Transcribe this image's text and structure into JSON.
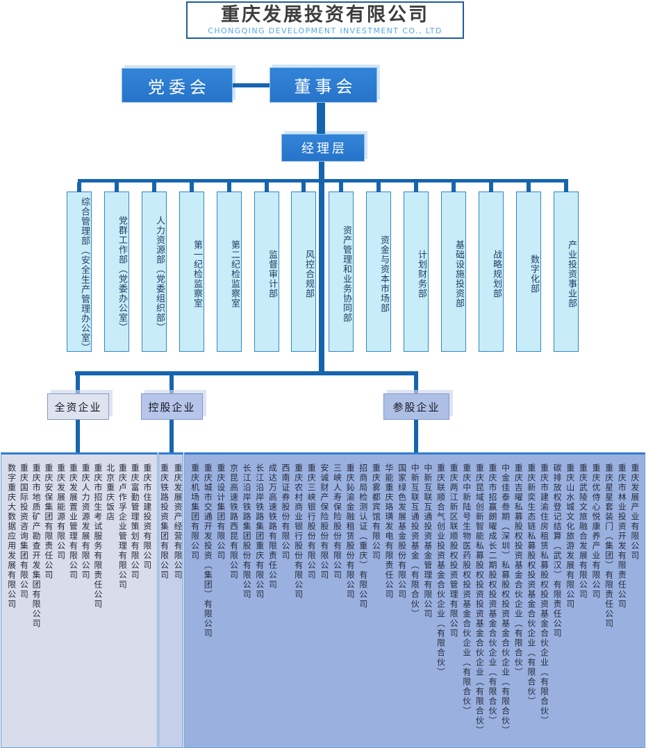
{
  "header": {
    "title_cn": "重庆发展投资有限公司",
    "title_en": "CHONGQING DEVELOPMENT INVESTMENT CO., LTD"
  },
  "governance": {
    "party_committee": "党委会",
    "board": "董事会",
    "management": "经理层"
  },
  "departments": [
    "综合管理部（安全生产管理办公室）",
    "党群工作部（党委办公室）",
    "人力资源部（党委组织部）",
    "第一纪检监察室",
    "第二纪检监察室",
    "监督审计部",
    "风控合规部",
    "资产管理和业务协同部",
    "资金与资本市场部",
    "计划财务部",
    "基础设施投资部",
    "战略规划部",
    "数字化部",
    "产业投资事业部"
  ],
  "categories": [
    {
      "label": "全资企业",
      "companies": [
        "数字重庆大数据应用发展有限公司",
        "重庆国际投资咨询集团有限公司",
        "重庆市地质矿产勘查开发集团有限公司",
        "重庆安保集团有限责任公司",
        "重庆发展能源有限公司",
        "重庆发展置业管理有限公司",
        "重庆人力资源发展有限公司",
        "重庆市招生考试服务有限责任公司",
        "北京重庆饭店",
        "重庆卢作孚企业管理有限公司",
        "重庆富勤管理策划有限公司",
        "重庆市住建投资有限公司"
      ]
    },
    {
      "label": "控股企业",
      "companies": [
        "重庆铁路投资集团有限公司",
        "重庆发展资产经营有限公司"
      ]
    },
    {
      "label": "参股企业",
      "companies": [
        "重庆机场集团有限公司",
        "重庆城市交通开发投资（集团）有限公司",
        "重庆设计集团有限公司",
        "京昆高速铁路西昆有限公司",
        "长江沿岸铁路集团股份有限公司",
        "长江沿岸铁路集团重庆有限公司",
        "成达万高速铁路有限责任公司",
        "西南证券股份有限公司",
        "重庆农村商业银行股份有限公司",
        "重庆三峡银行股份有限公司",
        "安诚财产保险股份有限公司",
        "三峡人寿保险股份有限公司",
        "重庆鈊渝金融租赁股份有限公司",
        "招商局检测认证（重庆）有限公司",
        "重庆雾都宾馆有限公司",
        "华能重庆珞璜发电有限责任公司",
        "国家绿色发展基金股份有限公司",
        "中新互联互通投资基金（有限合伙）",
        "中新互联互通投资基金管理有限公司",
        "重庆联顺合气创业投资基金合伙企业（有限合伙）",
        "重庆两江新区联顺股权投资管理有限公司",
        "重庆中新陆号生物医药股权投资基金合伙企业（有限合伙）",
        "重庆昆域创新智能私募股权投资投资基金合伙企业（有限合伙）",
        "重庆市招赢朗曜成长二期股权投资基金合伙企业（有限合伙）",
        "中金佳泰叁期（深圳）私募股权投资基金合伙企业（有限合伙）",
        "重庆吉曜私募股权投资基金合伙企业（有限合伙）",
        "重庆新奕生态链私募股权投资基金合伙企业（有限合伙）",
        "重庆市建渝住房租赁私募股权投资基金合伙企业（有限合伙）",
        "碳排放权登记结算（武汉）有限责任公司",
        "重庆山水城文化旅游发展有限公司",
        "重庆武陵文旅融合发展有限公司",
        "重庆优侍心悦康养产业有限公司",
        "重庆星星套装门（集团）有限责任公司",
        "重庆市林业投资开发有限责任公司",
        "重庆发展产业有限公司"
      ]
    }
  ],
  "colors": {
    "primary_blue": "#2b7cd2",
    "connector_blue": "#1565ae",
    "title_border": "#1e5c9b",
    "subtitle_blue": "#55a6e8",
    "department_fill": "#c9ecf9",
    "department_border": "#2e86c8",
    "wholly_owned_fill": "#dfe3ef",
    "holding_fill": "#b6c5e9",
    "invested_fill": "#aebfe6",
    "panel_wholly_fill": "#d9ddeb",
    "panel_holding_fill": "#c5cfe9",
    "panel_invested_fill": "#9ab1e0"
  }
}
